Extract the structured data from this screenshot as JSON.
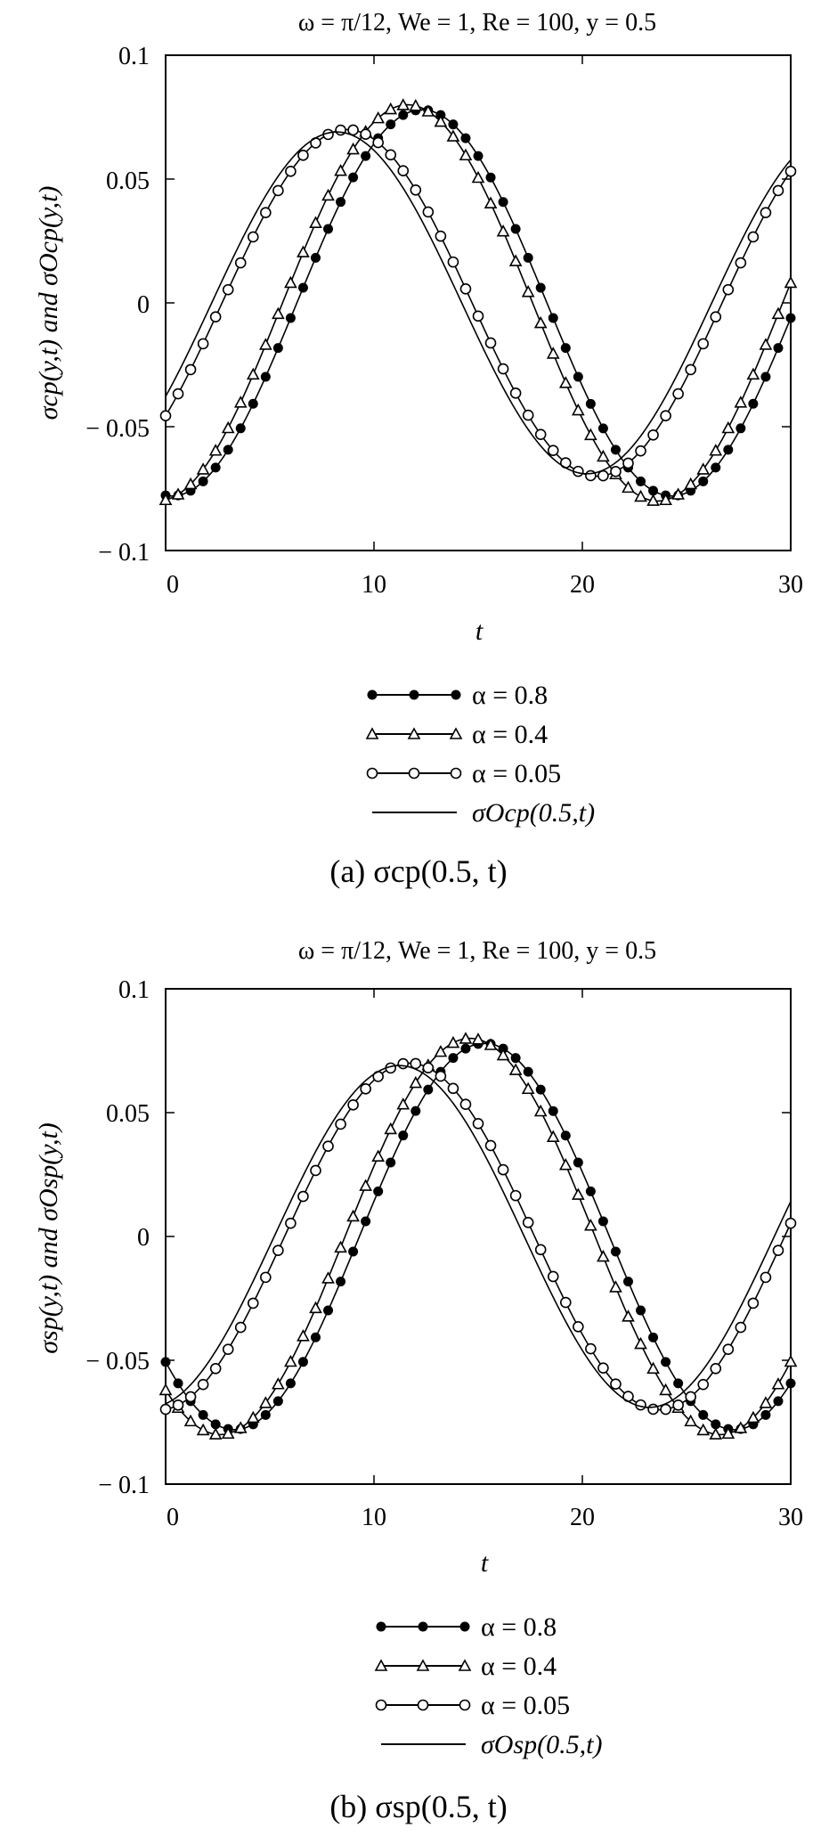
{
  "chart_data": [
    {
      "type": "line",
      "id": "a",
      "title": "ω = π/12, We = 1, Re = 100, y = 0.5",
      "xlabel": "t",
      "ylabel": "σcp(y,t) and σOcp(y,t)",
      "xlim": [
        0,
        30
      ],
      "ylim": [
        -0.1,
        0.1
      ],
      "xticks": [
        "0",
        "10",
        "20",
        "30"
      ],
      "yticks": [
        "0.1",
        "0.05",
        "0",
        "− 0.05",
        "− 0.1"
      ],
      "grid": false,
      "legend_position": "below",
      "caption": "(a)  σcp(0.5, t)",
      "series": [
        {
          "name": "α = 0.8",
          "marker": "filled-circle",
          "amplitude": 0.078,
          "phase": 3.22
        },
        {
          "name": "α = 0.4",
          "marker": "triangle",
          "amplitude": 0.08,
          "phase": 3.04
        },
        {
          "name": "α = 0.05",
          "marker": "open-circle",
          "amplitude": 0.07,
          "phase": 2.28
        },
        {
          "name": "σOcp(0.5,t)",
          "marker": "none",
          "amplitude": 0.069,
          "phase": 2.15
        }
      ]
    },
    {
      "type": "line",
      "id": "b",
      "title": "ω = π/12, We = 1, Re = 100, y = 0.5",
      "xlabel": "t",
      "ylabel": "σsp(y,t) and σOsp(y,t)",
      "xlim": [
        0,
        30
      ],
      "ylim": [
        -0.1,
        0.1
      ],
      "xticks": [
        "0",
        "10",
        "20",
        "30"
      ],
      "yticks": [
        "0.1",
        "0.05",
        "0",
        "− 0.05",
        "− 0.1"
      ],
      "grid": false,
      "legend_position": "below",
      "caption": "(b)  σsp(0.5, t)",
      "series": [
        {
          "name": "α = 0.8",
          "marker": "filled-circle",
          "amplitude": 0.078,
          "phase": 3.22
        },
        {
          "name": "α = 0.4",
          "marker": "triangle",
          "amplitude": 0.08,
          "phase": 3.04
        },
        {
          "name": "α = 0.05",
          "marker": "open-circle",
          "amplitude": 0.07,
          "phase": 2.28
        },
        {
          "name": "σOsp(0.5,t)",
          "marker": "none",
          "amplitude": 0.069,
          "phase": 2.15
        }
      ]
    }
  ]
}
